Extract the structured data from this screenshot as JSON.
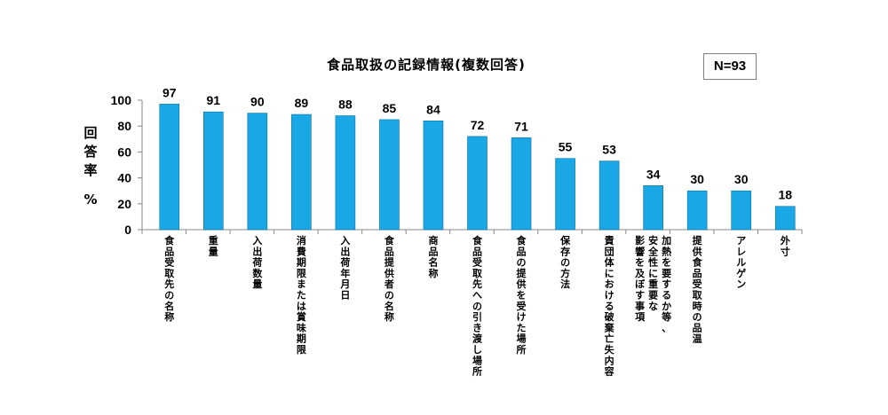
{
  "chart_data": {
    "type": "bar",
    "title": "食品取扱の記録情報(複数回答)",
    "sample_size": "N=93",
    "ylabel": "回答率",
    "yunit": "%",
    "ylim": [
      0,
      100
    ],
    "yticks": [
      0,
      20,
      40,
      60,
      80,
      100
    ],
    "grid": false,
    "bar_color": "#1aa7e6",
    "categories": [
      "食品受取先の名称",
      "重量",
      "入出荷数量",
      "消費期限または賞味期限",
      "入出荷年月日",
      "食品提供者の名称",
      "商品名称",
      "食品受取先への引き渡し場所",
      "食品の提供を受けた場所",
      "保存の方法",
      "責団体における破棄亡失内容",
      "加熱を要するか等、安全性に重要な影響を及ぼす事項",
      "提供食品受取時の品温",
      "アレルゲン",
      "外寸"
    ],
    "category_lines": [
      [
        "食品受取先の名称"
      ],
      [
        "重量"
      ],
      [
        "入出荷数量"
      ],
      [
        "消費期限または賞味期限"
      ],
      [
        "入出荷年月日"
      ],
      [
        "食品提供者の名称"
      ],
      [
        "商品名称"
      ],
      [
        "食品受取先への引き渡し場所"
      ],
      [
        "食品の提供を受けた場所"
      ],
      [
        "保存の方法"
      ],
      [
        "責団体における破棄亡失内容"
      ],
      [
        "加熱を要するか等、",
        "安全性に重要な",
        "影響を及ぼす事項"
      ],
      [
        "提供食品受取時の品温"
      ],
      [
        "アレルゲン"
      ],
      [
        "外寸"
      ]
    ],
    "values": [
      97,
      91,
      90,
      89,
      88,
      85,
      84,
      72,
      71,
      55,
      53,
      34,
      30,
      30,
      18
    ]
  }
}
